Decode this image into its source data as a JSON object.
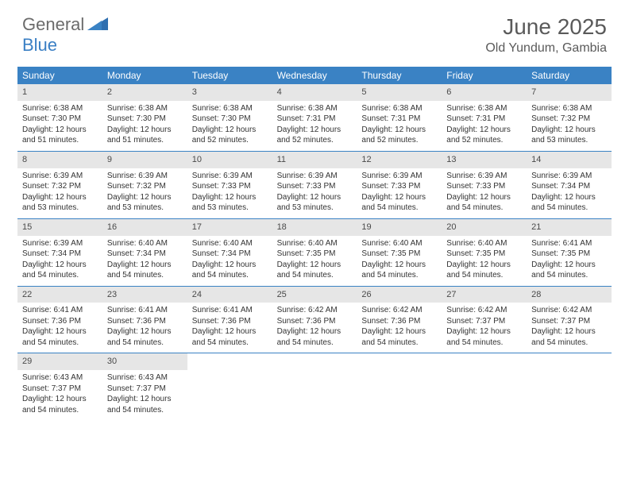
{
  "logo": {
    "general": "General",
    "blue": "Blue"
  },
  "title": "June 2025",
  "location": "Old Yundum, Gambia",
  "colors": {
    "header_bg": "#3a82c4",
    "header_text": "#ffffff",
    "daynum_bg": "#e6e6e6",
    "border": "#3a82c4",
    "logo_gray": "#6b6b6b",
    "logo_blue": "#3a7fc4"
  },
  "weekdays": [
    "Sunday",
    "Monday",
    "Tuesday",
    "Wednesday",
    "Thursday",
    "Friday",
    "Saturday"
  ],
  "weeks": [
    [
      {
        "n": "1",
        "sr": "Sunrise: 6:38 AM",
        "ss": "Sunset: 7:30 PM",
        "dl": "Daylight: 12 hours and 51 minutes."
      },
      {
        "n": "2",
        "sr": "Sunrise: 6:38 AM",
        "ss": "Sunset: 7:30 PM",
        "dl": "Daylight: 12 hours and 51 minutes."
      },
      {
        "n": "3",
        "sr": "Sunrise: 6:38 AM",
        "ss": "Sunset: 7:30 PM",
        "dl": "Daylight: 12 hours and 52 minutes."
      },
      {
        "n": "4",
        "sr": "Sunrise: 6:38 AM",
        "ss": "Sunset: 7:31 PM",
        "dl": "Daylight: 12 hours and 52 minutes."
      },
      {
        "n": "5",
        "sr": "Sunrise: 6:38 AM",
        "ss": "Sunset: 7:31 PM",
        "dl": "Daylight: 12 hours and 52 minutes."
      },
      {
        "n": "6",
        "sr": "Sunrise: 6:38 AM",
        "ss": "Sunset: 7:31 PM",
        "dl": "Daylight: 12 hours and 52 minutes."
      },
      {
        "n": "7",
        "sr": "Sunrise: 6:38 AM",
        "ss": "Sunset: 7:32 PM",
        "dl": "Daylight: 12 hours and 53 minutes."
      }
    ],
    [
      {
        "n": "8",
        "sr": "Sunrise: 6:39 AM",
        "ss": "Sunset: 7:32 PM",
        "dl": "Daylight: 12 hours and 53 minutes."
      },
      {
        "n": "9",
        "sr": "Sunrise: 6:39 AM",
        "ss": "Sunset: 7:32 PM",
        "dl": "Daylight: 12 hours and 53 minutes."
      },
      {
        "n": "10",
        "sr": "Sunrise: 6:39 AM",
        "ss": "Sunset: 7:33 PM",
        "dl": "Daylight: 12 hours and 53 minutes."
      },
      {
        "n": "11",
        "sr": "Sunrise: 6:39 AM",
        "ss": "Sunset: 7:33 PM",
        "dl": "Daylight: 12 hours and 53 minutes."
      },
      {
        "n": "12",
        "sr": "Sunrise: 6:39 AM",
        "ss": "Sunset: 7:33 PM",
        "dl": "Daylight: 12 hours and 54 minutes."
      },
      {
        "n": "13",
        "sr": "Sunrise: 6:39 AM",
        "ss": "Sunset: 7:33 PM",
        "dl": "Daylight: 12 hours and 54 minutes."
      },
      {
        "n": "14",
        "sr": "Sunrise: 6:39 AM",
        "ss": "Sunset: 7:34 PM",
        "dl": "Daylight: 12 hours and 54 minutes."
      }
    ],
    [
      {
        "n": "15",
        "sr": "Sunrise: 6:39 AM",
        "ss": "Sunset: 7:34 PM",
        "dl": "Daylight: 12 hours and 54 minutes."
      },
      {
        "n": "16",
        "sr": "Sunrise: 6:40 AM",
        "ss": "Sunset: 7:34 PM",
        "dl": "Daylight: 12 hours and 54 minutes."
      },
      {
        "n": "17",
        "sr": "Sunrise: 6:40 AM",
        "ss": "Sunset: 7:34 PM",
        "dl": "Daylight: 12 hours and 54 minutes."
      },
      {
        "n": "18",
        "sr": "Sunrise: 6:40 AM",
        "ss": "Sunset: 7:35 PM",
        "dl": "Daylight: 12 hours and 54 minutes."
      },
      {
        "n": "19",
        "sr": "Sunrise: 6:40 AM",
        "ss": "Sunset: 7:35 PM",
        "dl": "Daylight: 12 hours and 54 minutes."
      },
      {
        "n": "20",
        "sr": "Sunrise: 6:40 AM",
        "ss": "Sunset: 7:35 PM",
        "dl": "Daylight: 12 hours and 54 minutes."
      },
      {
        "n": "21",
        "sr": "Sunrise: 6:41 AM",
        "ss": "Sunset: 7:35 PM",
        "dl": "Daylight: 12 hours and 54 minutes."
      }
    ],
    [
      {
        "n": "22",
        "sr": "Sunrise: 6:41 AM",
        "ss": "Sunset: 7:36 PM",
        "dl": "Daylight: 12 hours and 54 minutes."
      },
      {
        "n": "23",
        "sr": "Sunrise: 6:41 AM",
        "ss": "Sunset: 7:36 PM",
        "dl": "Daylight: 12 hours and 54 minutes."
      },
      {
        "n": "24",
        "sr": "Sunrise: 6:41 AM",
        "ss": "Sunset: 7:36 PM",
        "dl": "Daylight: 12 hours and 54 minutes."
      },
      {
        "n": "25",
        "sr": "Sunrise: 6:42 AM",
        "ss": "Sunset: 7:36 PM",
        "dl": "Daylight: 12 hours and 54 minutes."
      },
      {
        "n": "26",
        "sr": "Sunrise: 6:42 AM",
        "ss": "Sunset: 7:36 PM",
        "dl": "Daylight: 12 hours and 54 minutes."
      },
      {
        "n": "27",
        "sr": "Sunrise: 6:42 AM",
        "ss": "Sunset: 7:37 PM",
        "dl": "Daylight: 12 hours and 54 minutes."
      },
      {
        "n": "28",
        "sr": "Sunrise: 6:42 AM",
        "ss": "Sunset: 7:37 PM",
        "dl": "Daylight: 12 hours and 54 minutes."
      }
    ],
    [
      {
        "n": "29",
        "sr": "Sunrise: 6:43 AM",
        "ss": "Sunset: 7:37 PM",
        "dl": "Daylight: 12 hours and 54 minutes."
      },
      {
        "n": "30",
        "sr": "Sunrise: 6:43 AM",
        "ss": "Sunset: 7:37 PM",
        "dl": "Daylight: 12 hours and 54 minutes."
      },
      null,
      null,
      null,
      null,
      null
    ]
  ]
}
